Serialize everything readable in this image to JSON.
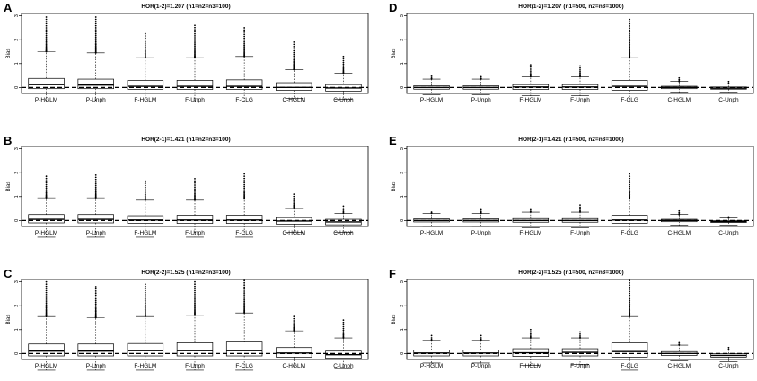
{
  "chart_data": [
    {
      "type": "boxplot",
      "panel_label": "A",
      "title": "HOR(1-2)=1.207 (n1=n2=n3=100)",
      "ylabel": "Bias",
      "ylim": [
        -0.25,
        3.1
      ],
      "yticks": [
        0,
        1,
        2,
        3
      ],
      "reference_line": 0,
      "categories": [
        "P-HGLM",
        "P-Unph",
        "F-HGLM",
        "F-Unph",
        "F-CLG",
        "C-HGLM",
        "C-Unph"
      ],
      "boxes": [
        {
          "q1": -0.05,
          "median": 0.12,
          "q3": 0.38,
          "whisker_low": -0.6,
          "whisker_high": 1.5,
          "outlier_max": 2.95
        },
        {
          "q1": -0.05,
          "median": 0.1,
          "q3": 0.35,
          "whisker_low": -0.6,
          "whisker_high": 1.45,
          "outlier_max": 2.95
        },
        {
          "q1": -0.08,
          "median": 0.05,
          "q3": 0.3,
          "whisker_low": -0.6,
          "whisker_high": 1.25,
          "outlier_max": 2.25
        },
        {
          "q1": -0.08,
          "median": 0.05,
          "q3": 0.3,
          "whisker_low": -0.6,
          "whisker_high": 1.25,
          "outlier_max": 2.6
        },
        {
          "q1": -0.08,
          "median": 0.05,
          "q3": 0.32,
          "whisker_low": -0.6,
          "whisker_high": 1.3,
          "outlier_max": 2.5
        },
        {
          "q1": -0.12,
          "median": 0.0,
          "q3": 0.2,
          "whisker_low": -0.45,
          "whisker_high": 0.75,
          "outlier_max": 1.9
        },
        {
          "q1": -0.15,
          "median": -0.02,
          "q3": 0.12,
          "whisker_low": -0.5,
          "whisker_high": 0.6,
          "outlier_max": 1.3
        }
      ]
    },
    {
      "type": "boxplot",
      "panel_label": "D",
      "title": "HOR(1-2)=1.207 (n1=500, n2=n3=1000)",
      "ylabel": "Bias",
      "ylim": [
        -0.25,
        3.1
      ],
      "yticks": [
        0,
        1,
        2,
        3
      ],
      "reference_line": 0,
      "categories": [
        "P-HGLM",
        "P-Unph",
        "F-HGLM",
        "F-Unph",
        "F-CLG",
        "C-HGLM",
        "C-Unph"
      ],
      "boxes": [
        {
          "q1": -0.07,
          "median": 0.0,
          "q3": 0.07,
          "whisker_low": -0.3,
          "whisker_high": 0.35,
          "outlier_max": 0.5
        },
        {
          "q1": -0.07,
          "median": 0.0,
          "q3": 0.07,
          "whisker_low": -0.3,
          "whisker_high": 0.35,
          "outlier_max": 0.45
        },
        {
          "q1": -0.08,
          "median": 0.02,
          "q3": 0.12,
          "whisker_low": -0.35,
          "whisker_high": 0.45,
          "outlier_max": 0.95
        },
        {
          "q1": -0.08,
          "median": 0.02,
          "q3": 0.12,
          "whisker_low": -0.35,
          "whisker_high": 0.45,
          "outlier_max": 0.9
        },
        {
          "q1": -0.12,
          "median": 0.05,
          "q3": 0.3,
          "whisker_low": -0.6,
          "whisker_high": 1.25,
          "outlier_max": 2.85
        },
        {
          "q1": -0.05,
          "median": 0.0,
          "q3": 0.05,
          "whisker_low": -0.2,
          "whisker_high": 0.25,
          "outlier_max": 0.4
        },
        {
          "q1": -0.07,
          "median": -0.03,
          "q3": 0.02,
          "whisker_low": -0.2,
          "whisker_high": 0.15,
          "outlier_max": 0.25
        }
      ]
    },
    {
      "type": "boxplot",
      "panel_label": "B",
      "title": "HOR(2-1)=1.421 (n1=n2=n3=100)",
      "ylabel": "Bias",
      "ylim": [
        -0.25,
        3.1
      ],
      "yticks": [
        0,
        1,
        2,
        3
      ],
      "reference_line": 0,
      "categories": [
        "P-HGLM",
        "P-Unph",
        "F-HGLM",
        "F-Unph",
        "F-CLG",
        "C-HGLM",
        "C-Unph"
      ],
      "boxes": [
        {
          "q1": -0.1,
          "median": 0.05,
          "q3": 0.25,
          "whisker_low": -0.7,
          "whisker_high": 0.95,
          "outlier_max": 1.85
        },
        {
          "q1": -0.1,
          "median": 0.05,
          "q3": 0.25,
          "whisker_low": -0.7,
          "whisker_high": 0.95,
          "outlier_max": 1.9
        },
        {
          "q1": -0.12,
          "median": 0.02,
          "q3": 0.2,
          "whisker_low": -0.7,
          "whisker_high": 0.85,
          "outlier_max": 1.65
        },
        {
          "q1": -0.12,
          "median": 0.02,
          "q3": 0.22,
          "whisker_low": -0.7,
          "whisker_high": 0.85,
          "outlier_max": 1.75
        },
        {
          "q1": -0.12,
          "median": 0.02,
          "q3": 0.22,
          "whisker_low": -0.7,
          "whisker_high": 0.9,
          "outlier_max": 1.95
        },
        {
          "q1": -0.15,
          "median": -0.02,
          "q3": 0.12,
          "whisker_low": -0.5,
          "whisker_high": 0.5,
          "outlier_max": 1.1
        },
        {
          "q1": -0.18,
          "median": -0.06,
          "q3": 0.05,
          "whisker_low": -0.5,
          "whisker_high": 0.3,
          "outlier_max": 0.6
        }
      ]
    },
    {
      "type": "boxplot",
      "panel_label": "E",
      "title": "HOR(2-1)=1.421 (n1=500, n2=n3=1000)",
      "ylabel": "Bias",
      "ylim": [
        -0.25,
        3.1
      ],
      "yticks": [
        0,
        1,
        2,
        3
      ],
      "reference_line": 0,
      "categories": [
        "P-HGLM",
        "P-Unph",
        "F-HGLM",
        "F-Unph",
        "F-CLG",
        "C-HGLM",
        "C-Unph"
      ],
      "boxes": [
        {
          "q1": -0.06,
          "median": 0.0,
          "q3": 0.07,
          "whisker_low": -0.25,
          "whisker_high": 0.3,
          "outlier_max": 0.35
        },
        {
          "q1": -0.06,
          "median": 0.0,
          "q3": 0.07,
          "whisker_low": -0.25,
          "whisker_high": 0.3,
          "outlier_max": 0.45
        },
        {
          "q1": -0.07,
          "median": 0.0,
          "q3": 0.08,
          "whisker_low": -0.3,
          "whisker_high": 0.35,
          "outlier_max": 0.45
        },
        {
          "q1": -0.07,
          "median": 0.0,
          "q3": 0.08,
          "whisker_low": -0.3,
          "whisker_high": 0.35,
          "outlier_max": 0.65
        },
        {
          "q1": -0.12,
          "median": 0.02,
          "q3": 0.22,
          "whisker_low": -0.6,
          "whisker_high": 0.9,
          "outlier_max": 1.95
        },
        {
          "q1": -0.05,
          "median": 0.0,
          "q3": 0.05,
          "whisker_low": -0.2,
          "whisker_high": 0.25,
          "outlier_max": 0.4
        },
        {
          "q1": -0.08,
          "median": -0.05,
          "q3": 0.0,
          "whisker_low": -0.2,
          "whisker_high": 0.1,
          "outlier_max": 0.15
        }
      ]
    },
    {
      "type": "boxplot",
      "panel_label": "C",
      "title": "HOR(2-2)=1.525 (n1=n2=n3=100)",
      "ylabel": "Bias",
      "ylim": [
        -0.25,
        3.1
      ],
      "yticks": [
        0,
        1,
        2,
        3
      ],
      "reference_line": 0,
      "categories": [
        "P-HGLM",
        "P-Unph",
        "F-HGLM",
        "F-Unph",
        "F-CLG",
        "C-HGLM",
        "C-Unph"
      ],
      "boxes": [
        {
          "q1": -0.1,
          "median": 0.1,
          "q3": 0.4,
          "whisker_low": -0.7,
          "whisker_high": 1.55,
          "outlier_max": 3.0
        },
        {
          "q1": -0.1,
          "median": 0.1,
          "q3": 0.4,
          "whisker_low": -0.7,
          "whisker_high": 1.5,
          "outlier_max": 2.8
        },
        {
          "q1": -0.1,
          "median": 0.12,
          "q3": 0.42,
          "whisker_low": -0.7,
          "whisker_high": 1.55,
          "outlier_max": 2.9
        },
        {
          "q1": -0.1,
          "median": 0.12,
          "q3": 0.45,
          "whisker_low": -0.7,
          "whisker_high": 1.6,
          "outlier_max": 3.0
        },
        {
          "q1": -0.1,
          "median": 0.12,
          "q3": 0.48,
          "whisker_low": -0.7,
          "whisker_high": 1.7,
          "outlier_max": 3.05
        },
        {
          "q1": -0.15,
          "median": 0.02,
          "q3": 0.25,
          "whisker_low": -0.6,
          "whisker_high": 0.95,
          "outlier_max": 1.55
        },
        {
          "q1": -0.2,
          "median": -0.05,
          "q3": 0.1,
          "whisker_low": -0.65,
          "whisker_high": 0.65,
          "outlier_max": 1.4
        }
      ]
    },
    {
      "type": "boxplot",
      "panel_label": "F",
      "title": "HOR(2-2)=1.525 (n1=500, n2=n3=1000)",
      "ylabel": "Bias",
      "ylim": [
        -0.25,
        3.1
      ],
      "yticks": [
        0,
        1,
        2,
        3
      ],
      "reference_line": 0,
      "categories": [
        "P-HGLM",
        "P-Unph",
        "F-HGLM",
        "F-Unph",
        "F-CLG",
        "C-HGLM",
        "C-Unph"
      ],
      "boxes": [
        {
          "q1": -0.1,
          "median": 0.02,
          "q3": 0.15,
          "whisker_low": -0.4,
          "whisker_high": 0.55,
          "outlier_max": 0.75
        },
        {
          "q1": -0.1,
          "median": 0.02,
          "q3": 0.15,
          "whisker_low": -0.4,
          "whisker_high": 0.55,
          "outlier_max": 0.75
        },
        {
          "q1": -0.12,
          "median": 0.03,
          "q3": 0.2,
          "whisker_low": -0.5,
          "whisker_high": 0.65,
          "outlier_max": 1.0
        },
        {
          "q1": -0.1,
          "median": 0.05,
          "q3": 0.2,
          "whisker_low": -0.45,
          "whisker_high": 0.65,
          "outlier_max": 0.9
        },
        {
          "q1": -0.15,
          "median": 0.08,
          "q3": 0.45,
          "whisker_low": -0.7,
          "whisker_high": 1.55,
          "outlier_max": 3.05
        },
        {
          "q1": -0.08,
          "median": 0.0,
          "q3": 0.08,
          "whisker_low": -0.3,
          "whisker_high": 0.35,
          "outlier_max": 0.45
        },
        {
          "q1": -0.15,
          "median": -0.08,
          "q3": 0.0,
          "whisker_low": -0.35,
          "whisker_high": 0.15,
          "outlier_max": 0.25
        }
      ]
    }
  ]
}
